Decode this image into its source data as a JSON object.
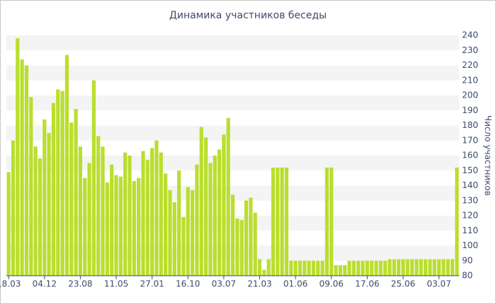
{
  "chart_data": {
    "type": "bar",
    "title": "Динамика участников беседы",
    "y_label": "Число участников",
    "categories": [
      "18.03",
      null,
      null,
      null,
      null,
      null,
      null,
      null,
      "04.12",
      null,
      null,
      null,
      null,
      null,
      null,
      null,
      "23.08",
      null,
      null,
      null,
      null,
      null,
      null,
      null,
      "11.05",
      null,
      null,
      null,
      null,
      null,
      null,
      null,
      "27.01",
      null,
      null,
      null,
      null,
      null,
      null,
      null,
      "16.10",
      null,
      null,
      null,
      null,
      null,
      null,
      null,
      "03.07",
      null,
      null,
      null,
      null,
      null,
      null,
      null,
      "21.03",
      null,
      null,
      null,
      null,
      null,
      null,
      null,
      "01.06",
      null,
      null,
      null,
      null,
      null,
      null,
      null,
      "09.06",
      null,
      null,
      null,
      null,
      null,
      null,
      null,
      "17.06",
      null,
      null,
      null,
      null,
      null,
      null,
      null,
      "25.06",
      null,
      null,
      null,
      null,
      null,
      null,
      null,
      "03.07",
      null,
      null,
      null,
      null
    ],
    "values": [
      149,
      170,
      238,
      224,
      220,
      199,
      166,
      158,
      184,
      175,
      195,
      204,
      203,
      227,
      182,
      191,
      166,
      145,
      155,
      210,
      173,
      166,
      142,
      154,
      147,
      146,
      162,
      160,
      143,
      145,
      163,
      157,
      165,
      170,
      162,
      148,
      137,
      129,
      150,
      119,
      139,
      137,
      154,
      179,
      172,
      155,
      160,
      164,
      174,
      185,
      134,
      118,
      117,
      130,
      132,
      122,
      91,
      84,
      91,
      152,
      152,
      152,
      152,
      90,
      90,
      90,
      90,
      90,
      90,
      90,
      90,
      152,
      152,
      87,
      87,
      87,
      90,
      90,
      90,
      90,
      90,
      90,
      90,
      90,
      90,
      91,
      91,
      91,
      91,
      91,
      91,
      91,
      91,
      91,
      91,
      91,
      91,
      91,
      91,
      91,
      152
    ],
    "color": "#bade2e",
    "ylim": [
      80,
      240
    ],
    "yticks": [
      80,
      90,
      100,
      110,
      120,
      130,
      140,
      150,
      160,
      170,
      180,
      190,
      200,
      210,
      220,
      230,
      240
    ],
    "grid": true
  }
}
